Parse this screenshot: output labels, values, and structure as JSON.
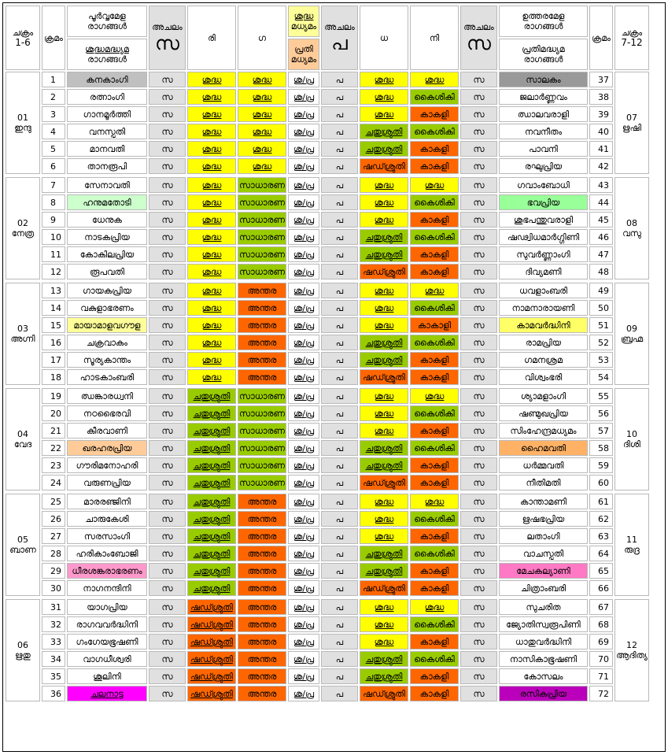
{
  "header": {
    "left_chakra": "ചക്രം 1-6",
    "left_chakra_l1": "ചക്രം",
    "left_chakra_l2": "1-6",
    "krama": "ക്രമം",
    "poorva_l1": "പൂർവ്വമേള",
    "poorva_l2": "രാഗങ്ങൾ",
    "shuddha_l1": "ശുദ്ധമദ്ധ്യമ",
    "shuddha_l2": "രാഗങ്ങൾ",
    "achalam": "അചലം",
    "sa": "സ",
    "ri": "രി",
    "ga": "ഗ",
    "ma_shuddha_l1": "ശുദ്ധ",
    "ma_shuddha_l2": "മധ്യമം",
    "ma_prati_l1": "പ്രതി",
    "ma_prati_l2": "മധ്യമം",
    "pa": "പ",
    "dha": "ധ",
    "ni": "നി",
    "uttara_l1": "ഉത്തരമേള",
    "uttara_l2": "രാഗങ്ങൾ",
    "prati_l1": "പ്രതിമദ്ധ്യമ",
    "prati_l2": "രാഗങ്ങൾ",
    "right_chakra_l1": "ചക്രം",
    "right_chakra_l2": "7-12"
  },
  "colors": {
    "shuddha": "#ffff00",
    "chatushruti_sadharana_kaishiki": "#99cc00",
    "shatshruti_antara_kakali": "#ff6600",
    "achalam": "#e0e0e0"
  },
  "rows": [
    {
      "lc": "01",
      "lcn": "ഇന്ദു",
      "n": "1",
      "name": "കനകാംഗി",
      "nbg": "#c0c0c0",
      "sa": "സ",
      "ri": "ശുദ്ധ",
      "ric": "y",
      "ga": "ശുദ്ധ",
      "gac": "y",
      "ma": "ശു/പ്ര",
      "pa": "പ",
      "dha": "ശുദ്ധ",
      "dhac": "y",
      "ni": "ശുദ്ധ",
      "nic": "y",
      "sa2": "സ",
      "rname": "സാലകം",
      "rbg": "#999999",
      "rn": "37",
      "rc": "07",
      "rcn": "ഋഷി"
    },
    {
      "n": "2",
      "name": "രത്നാംഗി",
      "sa": "സ",
      "ri": "ശുദ്ധ",
      "ric": "y",
      "ga": "ശുദ്ധ",
      "gac": "y",
      "ma": "ശു/പ്ര",
      "pa": "പ",
      "dha": "ശുദ്ധ",
      "dhac": "y",
      "ni": "കൈശികി",
      "nic": "g",
      "sa2": "സ",
      "rname": "ജലാർണ്ണവം",
      "rn": "38"
    },
    {
      "n": "3",
      "name": "ഗാനമൂർത്തി",
      "sa": "സ",
      "ri": "ശുദ്ധ",
      "ric": "y",
      "ga": "ശുദ്ധ",
      "gac": "y",
      "ma": "ശു/പ്ര",
      "pa": "പ",
      "dha": "ശുദ്ധ",
      "dhac": "y",
      "ni": "കാകളി",
      "nic": "o",
      "sa2": "സ",
      "rname": "ഝാലവരാളി",
      "rn": "39"
    },
    {
      "n": "4",
      "name": "വനസ്പതി",
      "sa": "സ",
      "ri": "ശുദ്ധ",
      "ric": "y",
      "ga": "ശുദ്ധ",
      "gac": "y",
      "ma": "ശു/പ്ര",
      "pa": "പ",
      "dha": "ചതുശ്രുതി",
      "dhac": "g",
      "ni": "കൈശികി",
      "nic": "g",
      "sa2": "സ",
      "rname": "നവനീതം",
      "rn": "40"
    },
    {
      "n": "5",
      "name": "മാനവതി",
      "sa": "സ",
      "ri": "ശുദ്ധ",
      "ric": "y",
      "ga": "ശുദ്ധ",
      "gac": "y",
      "ma": "ശു/പ്ര",
      "pa": "പ",
      "dha": "ചതുശ്രുതി",
      "dhac": "g",
      "ni": "കാകളി",
      "nic": "o",
      "sa2": "സ",
      "rname": "പാവനി",
      "rn": "41"
    },
    {
      "n": "6",
      "name": "താനരൂപി",
      "sa": "സ",
      "ri": "ശുദ്ധ",
      "ric": "y",
      "ga": "ശുദ്ധ",
      "gac": "y",
      "ma": "ശു/പ്ര",
      "pa": "പ",
      "dha": "ഷഡ്ശ്രുതി",
      "dhac": "o",
      "ni": "കാകളി",
      "nic": "o",
      "sa2": "സ",
      "rname": "രഘുപ്രിയ",
      "rn": "42"
    },
    {
      "lc": "02",
      "lcn": "നേത്ര",
      "n": "7",
      "name": "സേനാവതി",
      "sa": "സ",
      "ri": "ശുദ്ധ",
      "ric": "y",
      "ga": "സാധാരണ",
      "gac": "g",
      "ma": "ശു/പ്ര",
      "pa": "പ",
      "dha": "ശുദ്ധ",
      "dhac": "y",
      "ni": "ശുദ്ധ",
      "nic": "y",
      "sa2": "സ",
      "rname": "ഗവാംബോധി",
      "rn": "43",
      "rc": "08",
      "rcn": "വസു"
    },
    {
      "n": "8",
      "name": "ഹനുമതോടി",
      "nbg": "#ccffcc",
      "sa": "സ",
      "ri": "ശുദ്ധ",
      "ric": "y",
      "ga": "സാധാരണ",
      "gac": "g",
      "ma": "ശു/പ്ര",
      "pa": "പ",
      "dha": "ശുദ്ധ",
      "dhac": "y",
      "ni": "കൈശികി",
      "nic": "g",
      "sa2": "സ",
      "rname": "ഭവപ്രിയ",
      "rbg": "#99ff99",
      "rn": "44"
    },
    {
      "n": "9",
      "name": "ധേനുക",
      "sa": "സ",
      "ri": "ശുദ്ധ",
      "ric": "y",
      "ga": "സാധാരണ",
      "gac": "g",
      "ma": "ശു/പ്ര",
      "pa": "പ",
      "dha": "ശുദ്ധ",
      "dhac": "y",
      "ni": "കാകളി",
      "nic": "o",
      "sa2": "സ",
      "rname": "ശുഭപന്തുവരാളി",
      "rn": "45"
    },
    {
      "n": "10",
      "name": "നാടകപ്രിയ",
      "sa": "സ",
      "ri": "ശുദ്ധ",
      "ric": "y",
      "ga": "സാധാരണ",
      "gac": "g",
      "ma": "ശു/പ്ര",
      "pa": "പ",
      "dha": "ചതുശ്രുതി",
      "dhac": "g",
      "ni": "കൈശികി",
      "nic": "g",
      "sa2": "സ",
      "rname": "ഷഢ്വിധമാർഗ്ഗിണി",
      "rn": "46"
    },
    {
      "n": "11",
      "name": "കോകിലപ്രിയ",
      "sa": "സ",
      "ri": "ശുദ്ധ",
      "ric": "y",
      "ga": "സാധാരണ",
      "gac": "g",
      "ma": "ശു/പ്ര",
      "pa": "പ",
      "dha": "ചതുശ്രുതി",
      "dhac": "g",
      "ni": "കാകളി",
      "nic": "o",
      "sa2": "സ",
      "rname": "സുവർണ്ണാംഗി",
      "rn": "47"
    },
    {
      "n": "12",
      "name": "രൂപവതി",
      "sa": "സ",
      "ri": "ശുദ്ധ",
      "ric": "y",
      "ga": "സാധാരണ",
      "gac": "g",
      "ma": "ശു/പ്ര",
      "pa": "പ",
      "dha": "ഷഡ്ശ്രുതി",
      "dhac": "o",
      "ni": "കാകളി",
      "nic": "o",
      "sa2": "സ",
      "rname": "ദിവ്യമണി",
      "rn": "48"
    },
    {
      "lc": "03",
      "lcn": "അഗ്നി",
      "n": "13",
      "name": "ഗായകപ്രിയ",
      "sa": "സ",
      "ri": "ശുദ്ധ",
      "ric": "y",
      "ga": "അന്തര",
      "gac": "o",
      "ma": "ശു/പ്ര",
      "pa": "പ",
      "dha": "ശുദ്ധ",
      "dhac": "y",
      "ni": "ശുദ്ധ",
      "nic": "y",
      "sa2": "സ",
      "rname": "ധവളാംബരി",
      "rn": "49",
      "rc": "09",
      "rcn": "ബ്രഹ്മ"
    },
    {
      "n": "14",
      "name": "വകുളാഭരണം",
      "sa": "സ",
      "ri": "ശുദ്ധ",
      "ric": "y",
      "ga": "അന്തര",
      "gac": "o",
      "ma": "ശു/പ്ര",
      "pa": "പ",
      "dha": "ശുദ്ധ",
      "dhac": "y",
      "ni": "കൈശികി",
      "nic": "g",
      "sa2": "സ",
      "rname": "നാമനാരായണി",
      "rn": "50"
    },
    {
      "n": "15",
      "name": "മായാമാളവഗൗള",
      "nbg": "#ffff99",
      "sa": "സ",
      "ri": "ശുദ്ധ",
      "ric": "y",
      "ga": "അന്തര",
      "gac": "o",
      "ma": "ശു/പ്ര",
      "pa": "പ",
      "dha": "ശുദ്ധ",
      "dhac": "y",
      "ni": "കാകാളി",
      "nic": "o",
      "sa2": "സ",
      "rname": "കാമവർദ്ധിനി",
      "rbg": "#ffff66",
      "rn": "51"
    },
    {
      "n": "16",
      "name": "ചക്രവാകം",
      "sa": "സ",
      "ri": "ശുദ്ധ",
      "ric": "y",
      "ga": "അന്തര",
      "gac": "o",
      "ma": "ശു/പ്ര",
      "pa": "പ",
      "dha": "ചതുശ്രുതി",
      "dhac": "g",
      "ni": "കൈശികി",
      "nic": "g",
      "sa2": "സ",
      "rname": "രാമപ്രിയ",
      "rn": "52"
    },
    {
      "n": "17",
      "name": "സൂര്യകാന്തം",
      "sa": "സ",
      "ri": "ശുദ്ധ",
      "ric": "y",
      "ga": "അന്തര",
      "gac": "o",
      "ma": "ശു/പ്ര",
      "pa": "പ",
      "dha": "ചതുശ്രുതി",
      "dhac": "g",
      "ni": "കാകളി",
      "nic": "o",
      "sa2": "സ",
      "rname": "ഗമനശ്രമ",
      "rn": "53"
    },
    {
      "n": "18",
      "name": "ഹാടകാംബരി",
      "sa": "സ",
      "ri": "ശുദ്ധ",
      "ric": "y",
      "ga": "അന്തര",
      "gac": "o",
      "ma": "ശു/പ്ര",
      "pa": "പ",
      "dha": "ഷഡ്ശ്രുതി",
      "dhac": "o",
      "ni": "കാകളി",
      "nic": "o",
      "sa2": "സ",
      "rname": "വിശ്വംഭരി",
      "rn": "54"
    },
    {
      "lc": "04",
      "lcn": "വേദ",
      "n": "19",
      "name": "ഝങ്കാരധ്വനി",
      "sa": "സ",
      "ri": "ചതുശ്രുതി",
      "ric": "g",
      "ga": "സാധാരണ",
      "gac": "g",
      "ma": "ശു/പ്ര",
      "pa": "പ",
      "dha": "ശുദ്ധ",
      "dhac": "y",
      "ni": "ശുദ്ധ",
      "nic": "y",
      "sa2": "സ",
      "rname": "ശ്യാമളാംഗി",
      "rn": "55",
      "rc": "10",
      "rcn": "ദിശി"
    },
    {
      "n": "20",
      "name": "നഠഭൈരവി",
      "sa": "സ",
      "ri": "ചതുശ്രുതി",
      "ric": "g",
      "ga": "സാധാരണ",
      "gac": "g",
      "ma": "ശു/പ്ര",
      "pa": "പ",
      "dha": "ശുദ്ധ",
      "dhac": "y",
      "ni": "കൈശികി",
      "nic": "g",
      "sa2": "സ",
      "rname": "ഷണ്മുഖപ്രിയ",
      "rn": "56"
    },
    {
      "n": "21",
      "name": "കീരവാണി",
      "sa": "സ",
      "ri": "ചതുശ്രുതി",
      "ric": "g",
      "ga": "സാധാരണ",
      "gac": "g",
      "ma": "ശു/പ്ര",
      "pa": "പ",
      "dha": "ശുദ്ധ",
      "dhac": "y",
      "ni": "കാകളി",
      "nic": "o",
      "sa2": "സ",
      "rname": "സിംഹേന്ദ്രമധ്യമം",
      "rn": "57"
    },
    {
      "n": "22",
      "name": "ഖരഹരപ്രിയ",
      "nbg": "#ffcc99",
      "sa": "സ",
      "ri": "ചതുശ്രുതി",
      "ric": "g",
      "ga": "സാധാരണ",
      "gac": "g",
      "ma": "ശു/പ്ര",
      "pa": "പ",
      "dha": "ചതുശ്രുതി",
      "dhac": "g",
      "ni": "കൈശികി",
      "nic": "g",
      "sa2": "സ",
      "rname": "ഹൈമവതി",
      "rbg": "#ffb266",
      "rn": "58"
    },
    {
      "n": "23",
      "name": "ഗൗരിമനോഹരി",
      "sa": "സ",
      "ri": "ചതുശ്രുതി",
      "ric": "g",
      "ga": "സാധാരണ",
      "gac": "g",
      "ma": "ശു/പ്ര",
      "pa": "പ",
      "dha": "ചതുശ്രുതി",
      "dhac": "g",
      "ni": "കാകളി",
      "nic": "o",
      "sa2": "സ",
      "rname": "ധർമ്മവതി",
      "rn": "59"
    },
    {
      "n": "24",
      "name": "വരുണപ്രിയ",
      "sa": "സ",
      "ri": "ചതുശ്രുതി",
      "ric": "g",
      "ga": "സാധാരണ",
      "gac": "g",
      "ma": "ശു/പ്ര",
      "pa": "പ",
      "dha": "ഷഡ്ശ്രുതി",
      "dhac": "o",
      "ni": "കാകളി",
      "nic": "o",
      "sa2": "സ",
      "rname": "നീതിമതി",
      "rn": "60"
    },
    {
      "lc": "05",
      "lcn": "ബാണ",
      "n": "25",
      "name": "മാരരഞ്ജിനി",
      "sa": "സ",
      "ri": "ചതുശ്രുതി",
      "ric": "g",
      "ga": "അന്തര",
      "gac": "o",
      "ma": "ശു/പ്ര",
      "pa": "പ",
      "dha": "ശുദ്ധ",
      "dhac": "y",
      "ni": "ശുദ്ധ",
      "nic": "y",
      "sa2": "സ",
      "rname": "കാന്താമണി",
      "rn": "61",
      "rc": "11",
      "rcn": "രുദ്ര"
    },
    {
      "n": "26",
      "name": "ചാരുകേശി",
      "sa": "സ",
      "ri": "ചതുശ്രുതി",
      "ric": "g",
      "ga": "അന്തര",
      "gac": "o",
      "ma": "ശു/പ്ര",
      "pa": "പ",
      "dha": "ശുദ്ധ",
      "dhac": "y",
      "ni": "കൈശികി",
      "nic": "g",
      "sa2": "സ",
      "rname": "ഋഷഭപ്രിയ",
      "rn": "62"
    },
    {
      "n": "27",
      "name": "സരസാംഗി",
      "sa": "സ",
      "ri": "ചതുശ്രുതി",
      "ric": "g",
      "ga": "അന്തര",
      "gac": "o",
      "ma": "ശു/പ്ര",
      "pa": "പ",
      "dha": "ശുദ്ധ",
      "dhac": "y",
      "ni": "കാകളി",
      "nic": "o",
      "sa2": "സ",
      "rname": "ലതാംഗി",
      "rn": "63"
    },
    {
      "n": "28",
      "name": "ഹരികാംബോജി",
      "sa": "സ",
      "ri": "ചതുശ്രുതി",
      "ric": "g",
      "ga": "അന്തര",
      "gac": "o",
      "ma": "ശു/പ്ര",
      "pa": "പ",
      "dha": "ചതുശ്രുതി",
      "dhac": "g",
      "ni": "കൈശികി",
      "nic": "g",
      "sa2": "സ",
      "rname": "വാചസ്പതി",
      "rn": "64"
    },
    {
      "n": "29",
      "name": "ധീരശങ്കരാഭരണം",
      "nbg": "#ff99cc",
      "sa": "സ",
      "ri": "ചതുശ്രുതി",
      "ric": "g",
      "ga": "അന്തര",
      "gac": "o",
      "ma": "ശു/പ്ര",
      "pa": "പ",
      "dha": "ചതുശ്രുതി",
      "dhac": "g",
      "ni": "കാകളി",
      "nic": "o",
      "sa2": "സ",
      "rname": "മേചകല്യാണി",
      "rbg": "#ff79c4",
      "rn": "65"
    },
    {
      "n": "30",
      "name": "നാഗനന്ദിനി",
      "sa": "സ",
      "ri": "ചതുശ്രുതി",
      "ric": "g",
      "ga": "അന്തര",
      "gac": "o",
      "ma": "ശു/പ്ര",
      "pa": "പ",
      "dha": "ഷഡ്ശ്രുതി",
      "dhac": "o",
      "ni": "കാകളി",
      "nic": "o",
      "sa2": "സ",
      "rname": "ചിത്രാംബരി",
      "rn": "66"
    },
    {
      "lc": "06",
      "lcn": "ഋതു",
      "n": "31",
      "name": "യാഗപ്രിയ",
      "sa": "സ",
      "ri": "ഷഡ്ശ്രുതി",
      "ric": "o",
      "ga": "അന്തര",
      "gac": "o",
      "ma": "ശു/പ്ര",
      "pa": "പ",
      "dha": "ശുദ്ധ",
      "dhac": "y",
      "ni": "ശുദ്ധ",
      "nic": "y",
      "sa2": "സ",
      "rname": "സുചരിത",
      "rn": "67",
      "rc": "12",
      "rcn": "ആദിത്യ"
    },
    {
      "n": "32",
      "name": "രാഗവവർദ്ധിനി",
      "sa": "സ",
      "ri": "ഷഡ്ശ്രുതി",
      "ric": "o",
      "ga": "അന്തര",
      "gac": "o",
      "ma": "ശു/പ്ര",
      "pa": "പ",
      "dha": "ശുദ്ധ",
      "dhac": "y",
      "ni": "കൈശികി",
      "nic": "g",
      "sa2": "സ",
      "rname": "ജ്യോതിസ്വരൂപിണി",
      "rn": "68"
    },
    {
      "n": "33",
      "name": "ഗംഗേയഭൂഷണി",
      "sa": "സ",
      "ri": "ഷഡ്ശ്രുതി",
      "ric": "o",
      "ga": "അന്തര",
      "gac": "o",
      "ma": "ശു/പ്ര",
      "pa": "പ",
      "dha": "ശുദ്ധ",
      "dhac": "y",
      "ni": "കാകളി",
      "nic": "o",
      "sa2": "സ",
      "rname": "ധാതുവർദ്ധിനി",
      "rn": "69"
    },
    {
      "n": "34",
      "name": "വാഗധീശ്വരി",
      "sa": "സ",
      "ri": "ഷഡ്ശ്രുതി",
      "ric": "o",
      "ga": "അന്തര",
      "gac": "o",
      "ma": "ശു/പ്ര",
      "pa": "പ",
      "dha": "ചതുശ്രുതി",
      "dhac": "g",
      "ni": "കൈശികി",
      "nic": "g",
      "sa2": "സ",
      "rname": "നാസികാഭൂഷണി",
      "rn": "70"
    },
    {
      "n": "35",
      "name": "ശൂലിനി",
      "sa": "സ",
      "ri": "ഷഡ്ശ്രുതി",
      "ric": "o",
      "ga": "അന്തര",
      "gac": "o",
      "ma": "ശു/പ്ര",
      "pa": "പ",
      "dha": "ചതുശ്രുതി",
      "dhac": "g",
      "ni": "കാകളി",
      "nic": "o",
      "sa2": "സ",
      "rname": "കോസലം",
      "rn": "71"
    },
    {
      "n": "36",
      "name": "ചലനാട്ട",
      "nbg": "#ff00ff",
      "nul": true,
      "sa": "സ",
      "ri": "ഷഡ്ശ്രുതി",
      "ric": "o",
      "ga": "അന്തര",
      "gac": "o",
      "ma": "ശു/പ്ര",
      "pa": "പ",
      "dha": "ഷഡ്ശ്രുതി",
      "dhac": "o",
      "ni": "കാകളി",
      "nic": "o",
      "sa2": "സ",
      "rname": "രസികപ്രിയ",
      "rbg": "#bb00bb",
      "rn": "72"
    }
  ]
}
